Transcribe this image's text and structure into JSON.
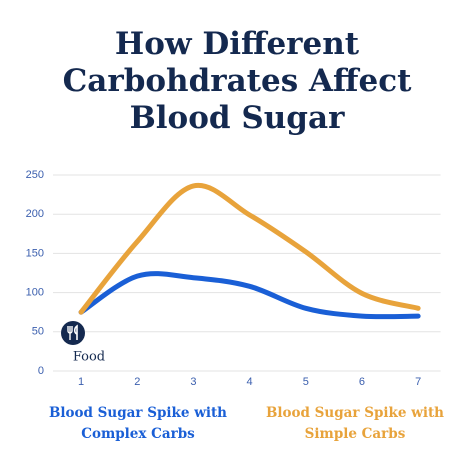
{
  "chart_data": {
    "type": "line",
    "title": "How Different Carbohdrates Affect Blood Sugar",
    "x": [
      1,
      2,
      3,
      4,
      5,
      6,
      7
    ],
    "series": [
      {
        "name": "Blood Sugar Spike with Complex Carbs",
        "color": "#1a5fd6",
        "values": [
          75,
          121,
          119,
          108,
          80,
          70,
          70
        ]
      },
      {
        "name": "Blood Sugar Spike with Simple Carbs",
        "color": "#e8a33b",
        "values": [
          75,
          165,
          236,
          199,
          152,
          99,
          80
        ]
      }
    ],
    "annotation": "Food",
    "xlim": [
      0.5,
      7.4
    ],
    "xticks": [
      1,
      2,
      3,
      4,
      5,
      6,
      7
    ],
    "ylim": [
      0,
      250
    ],
    "yticks": [
      0,
      50,
      100,
      150,
      200,
      250
    ],
    "grid": true
  }
}
